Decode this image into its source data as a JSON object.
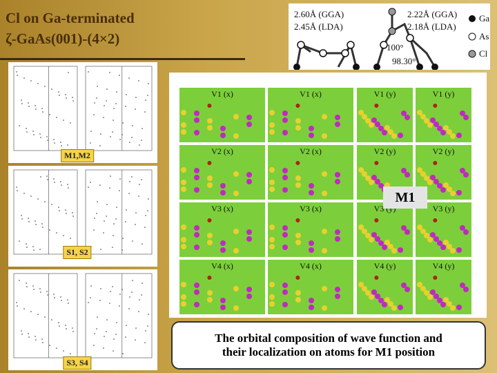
{
  "title": {
    "line1": "Cl on Ga-terminated",
    "line2": "ζ-GaAs(001)-(4×2)"
  },
  "structure_diagram": {
    "left_labels": [
      "2.60Å (GGA)",
      "2.45Å (LDA)"
    ],
    "right_labels": [
      "2.22Å (GGA)",
      "2.18Å (LDA)"
    ],
    "angles": [
      "100°",
      "98.30°"
    ],
    "legend": [
      "Ga",
      "As",
      "Cl"
    ]
  },
  "band_panels": [
    {
      "label": "M1,M2"
    },
    {
      "label": "S1, S2"
    },
    {
      "label": "S3, S4"
    }
  ],
  "orbital_grid": {
    "rows": [
      [
        "V1 (x)",
        "V1 (x)",
        "V1 (y)",
        "V1 (y)"
      ],
      [
        "V2 (x)",
        "V2 (x)",
        "V2 (y)",
        "V2 (y)"
      ],
      [
        "V3 (x)",
        "V3 (x)",
        "V3 (y)",
        "V3 (y)"
      ],
      [
        "V4 (x)",
        "V4 (x)",
        "V4 (y)",
        "V4 (y)"
      ]
    ],
    "marker": "M1"
  },
  "caption": {
    "lines": [
      "The orbital composition of wave function and",
      "their localization on atoms for M1 position"
    ]
  }
}
